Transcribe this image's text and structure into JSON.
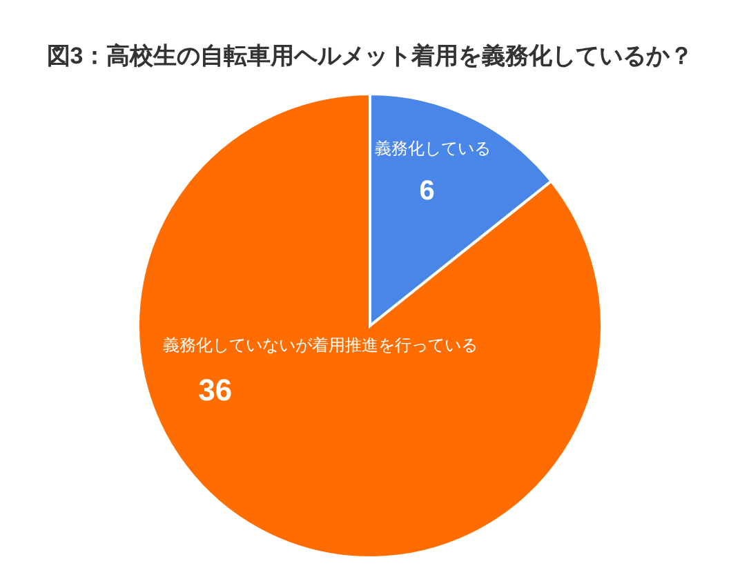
{
  "chart_data": {
    "type": "pie",
    "title": "図3：高校生の自転車用ヘルメット着用を義務化しているか？",
    "categories": [
      "義務化している",
      "義務化していないが着用推進を行っている"
    ],
    "values": [
      6,
      36
    ],
    "colors": [
      "#4a86e8",
      "#ff6d01"
    ],
    "data_labels": true,
    "legend": false
  }
}
